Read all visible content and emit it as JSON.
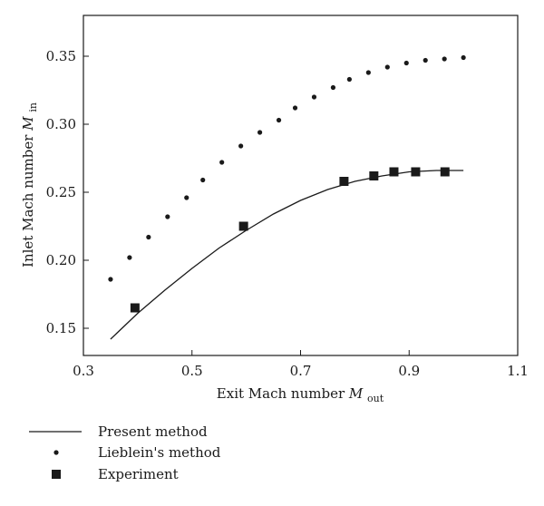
{
  "chart_data": {
    "type": "line",
    "title": "",
    "xlabel": "Exit Mach number",
    "xlabel_symbol": "M",
    "xlabel_sub": "out",
    "ylabel": "Inlet Mach number",
    "ylabel_symbol": "M",
    "ylabel_sub": "in",
    "xlim": [
      0.3,
      1.1
    ],
    "ylim": [
      0.13,
      0.38
    ],
    "xticks": [
      "0.3",
      "0.5",
      "0.7",
      "0.9",
      "1.1"
    ],
    "yticks": [
      "0.15",
      "0.20",
      "0.25",
      "0.30",
      "0.35"
    ],
    "grid": false,
    "legend_placement": "bottom-left, below plot",
    "series": [
      {
        "name": "Present method",
        "style": "line",
        "color": "#1a1a1a",
        "x": [
          0.35,
          0.4,
          0.45,
          0.5,
          0.55,
          0.6,
          0.65,
          0.7,
          0.75,
          0.8,
          0.85,
          0.9,
          0.95,
          1.0
        ],
        "y": [
          0.142,
          0.161,
          0.178,
          0.194,
          0.209,
          0.222,
          0.234,
          0.244,
          0.252,
          0.258,
          0.262,
          0.265,
          0.266,
          0.266
        ]
      },
      {
        "name": "Lieblein's method",
        "style": "dots",
        "color": "#1a1a1a",
        "x": [
          0.35,
          0.385,
          0.42,
          0.455,
          0.49,
          0.52,
          0.555,
          0.59,
          0.625,
          0.66,
          0.69,
          0.725,
          0.76,
          0.79,
          0.825,
          0.86,
          0.895,
          0.93,
          0.965,
          1.0
        ],
        "y": [
          0.186,
          0.202,
          0.217,
          0.232,
          0.246,
          0.259,
          0.272,
          0.284,
          0.294,
          0.303,
          0.312,
          0.32,
          0.327,
          0.333,
          0.338,
          0.342,
          0.345,
          0.347,
          0.348,
          0.349
        ]
      },
      {
        "name": "Experiment",
        "style": "squares",
        "color": "#1a1a1a",
        "x": [
          0.395,
          0.595,
          0.78,
          0.835,
          0.872,
          0.912,
          0.966
        ],
        "y": [
          0.165,
          0.225,
          0.258,
          0.262,
          0.265,
          0.265,
          0.265
        ]
      }
    ]
  }
}
